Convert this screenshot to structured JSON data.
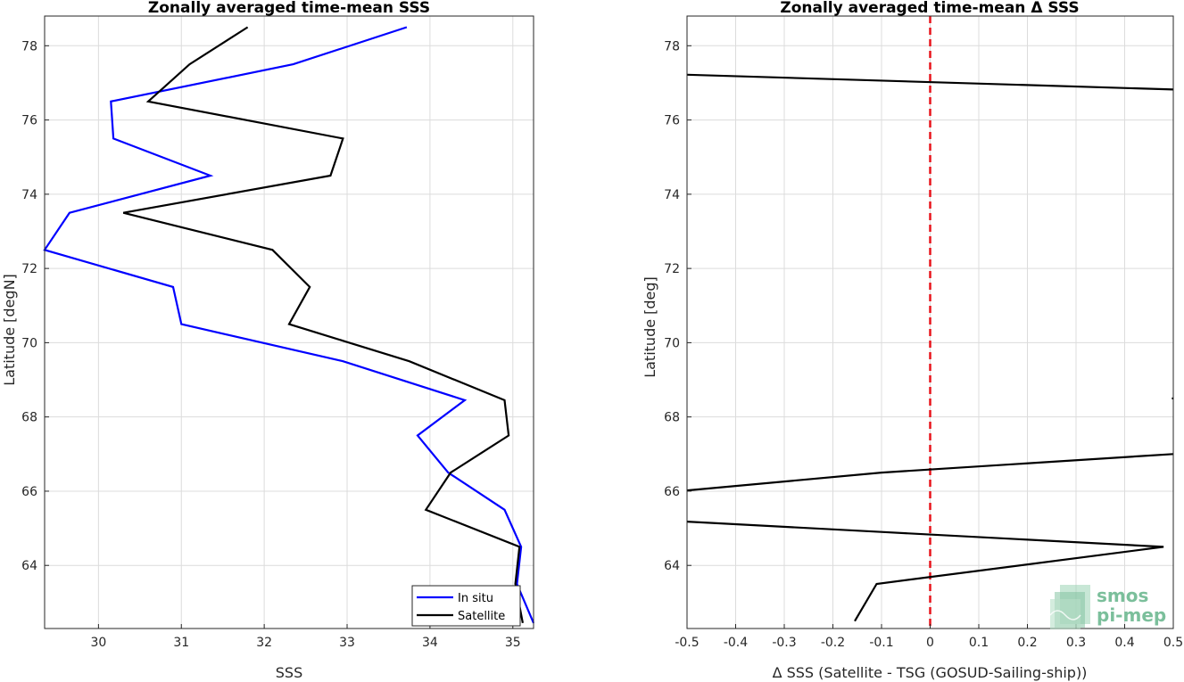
{
  "chart_data": [
    {
      "type": "line",
      "title": "Zonally averaged time-mean SSS",
      "xlabel": "SSS",
      "ylabel": "Latitude [degN]",
      "xlim": [
        29.35,
        35.25
      ],
      "ylim": [
        62.3,
        78.8
      ],
      "xticks": [
        30,
        31,
        32,
        33,
        34,
        35
      ],
      "yticks": [
        64,
        66,
        68,
        70,
        72,
        74,
        76,
        78
      ],
      "grid": true,
      "legend": "bottom-right",
      "series": [
        {
          "name": "In situ",
          "color": "#0000ff",
          "points": [
            [
              33.72,
              78.5
            ],
            [
              32.35,
              77.5
            ],
            [
              30.15,
              76.5
            ],
            [
              30.18,
              75.5
            ],
            [
              31.35,
              74.5
            ],
            [
              29.65,
              73.5
            ],
            [
              29.35,
              72.5
            ],
            [
              30.9,
              71.5
            ],
            [
              31.0,
              70.5
            ],
            [
              32.95,
              69.5
            ],
            [
              34.42,
              68.45
            ],
            [
              33.85,
              67.5
            ],
            [
              34.22,
              66.5
            ],
            [
              34.9,
              65.5
            ],
            [
              35.1,
              64.5
            ],
            [
              35.05,
              63.5
            ],
            [
              35.25,
              62.45
            ]
          ]
        },
        {
          "name": "Satellite",
          "color": "#000000",
          "points": [
            [
              31.8,
              78.5
            ],
            [
              31.1,
              77.5
            ],
            [
              30.6,
              76.5
            ],
            [
              32.95,
              75.5
            ],
            [
              32.8,
              74.5
            ],
            [
              30.3,
              73.5
            ],
            [
              32.1,
              72.5
            ],
            [
              32.55,
              71.5
            ],
            [
              32.3,
              70.5
            ],
            [
              33.75,
              69.5
            ],
            [
              34.9,
              68.45
            ],
            [
              34.95,
              67.5
            ],
            [
              34.25,
              66.5
            ],
            [
              33.95,
              65.5
            ],
            [
              35.08,
              64.5
            ],
            [
              35.03,
              63.5
            ],
            [
              35.12,
              62.45
            ]
          ]
        }
      ]
    },
    {
      "type": "line",
      "title": "Zonally averaged time-mean Δ SSS",
      "xlabel": "Δ SSS (Satellite - TSG (GOSUD-Sailing-ship))",
      "ylabel": "Latitude [deg]",
      "xlim": [
        -0.5,
        0.5
      ],
      "ylim": [
        62.3,
        78.8
      ],
      "xticks": [
        -0.5,
        -0.4,
        -0.3,
        -0.2,
        -0.1,
        0,
        0.1,
        0.2,
        0.3,
        0.4,
        0.5
      ],
      "xtick_labels": [
        "-0.5",
        "-0.4",
        "-0.3",
        "-0.2",
        "-0.1",
        "0",
        "0.1",
        "0.2",
        "0.3",
        "0.4",
        "0.5"
      ],
      "yticks": [
        64,
        66,
        68,
        70,
        72,
        74,
        76,
        78
      ],
      "grid": true,
      "reference_line": {
        "x": 0,
        "color": "#e8141c",
        "style": "dashed"
      },
      "series": [
        {
          "color": "#000000",
          "segments": [
            [
              [
                -0.5,
                77.22
              ],
              [
                0.5,
                76.82
              ]
            ],
            [
              [
                -0.5,
                66.02
              ],
              [
                -0.1,
                66.5
              ],
              [
                0.5,
                67.0
              ]
            ],
            [
              [
                -0.5,
                65.18
              ],
              [
                -0.1,
                64.9
              ],
              [
                0.48,
                64.5
              ],
              [
                -0.11,
                63.5
              ],
              [
                -0.155,
                62.5
              ]
            ],
            [
              [
                0.497,
                68.5
              ],
              [
                0.5,
                68.5
              ]
            ]
          ]
        }
      ]
    }
  ],
  "logo": {
    "line1": "smos",
    "line2": "pi-mep"
  }
}
